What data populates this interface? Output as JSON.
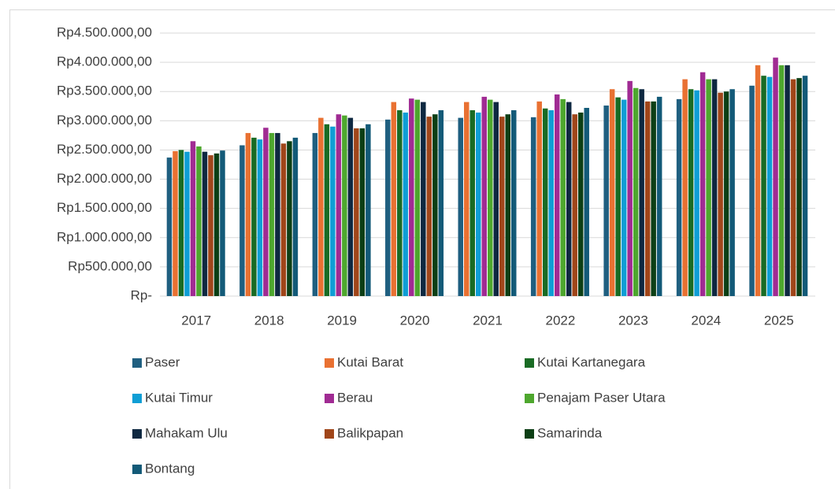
{
  "chart_data": {
    "type": "bar",
    "categories": [
      "2017",
      "2018",
      "2019",
      "2020",
      "2021",
      "2022",
      "2023",
      "2024",
      "2025"
    ],
    "series": [
      {
        "name": "Paser",
        "color": "#1f5f80",
        "values": [
          2370000,
          2580000,
          2790000,
          3020000,
          3050000,
          3060000,
          3260000,
          3370000,
          3600000
        ]
      },
      {
        "name": "Kutai Barat",
        "color": "#e97132",
        "values": [
          2480000,
          2790000,
          3050000,
          3320000,
          3320000,
          3330000,
          3540000,
          3710000,
          3950000
        ]
      },
      {
        "name": "Kutai Kartanegara",
        "color": "#196b24",
        "values": [
          2500000,
          2710000,
          2940000,
          3180000,
          3180000,
          3210000,
          3400000,
          3540000,
          3770000
        ]
      },
      {
        "name": "Kutai Timur",
        "color": "#0f9ed5",
        "values": [
          2470000,
          2680000,
          2900000,
          3140000,
          3140000,
          3180000,
          3360000,
          3520000,
          3750000
        ]
      },
      {
        "name": "Berau",
        "color": "#a02b93",
        "values": [
          2650000,
          2880000,
          3110000,
          3380000,
          3410000,
          3450000,
          3680000,
          3830000,
          4080000
        ]
      },
      {
        "name": "Penajam Paser Utara",
        "color": "#4ea72e",
        "values": [
          2560000,
          2790000,
          3090000,
          3360000,
          3360000,
          3370000,
          3560000,
          3710000,
          3950000
        ]
      },
      {
        "name": "Mahakam Ulu",
        "color": "#0e2841",
        "values": [
          2470000,
          2790000,
          3050000,
          3320000,
          3320000,
          3320000,
          3540000,
          3710000,
          3950000
        ]
      },
      {
        "name": "Balikpapan",
        "color": "#a0461a",
        "values": [
          2410000,
          2610000,
          2870000,
          3070000,
          3070000,
          3110000,
          3330000,
          3480000,
          3710000
        ]
      },
      {
        "name": "Samarinda",
        "color": "#0c3f15",
        "values": [
          2440000,
          2650000,
          2870000,
          3110000,
          3110000,
          3140000,
          3330000,
          3500000,
          3730000
        ]
      },
      {
        "name": "Bontang",
        "color": "#135a78",
        "values": [
          2490000,
          2710000,
          2940000,
          3180000,
          3180000,
          3220000,
          3410000,
          3540000,
          3770000
        ]
      }
    ],
    "ylim": [
      0,
      4500000
    ],
    "yticks": [
      {
        "value": 0,
        "label": "Rp-"
      },
      {
        "value": 500000,
        "label": "Rp500.000,00"
      },
      {
        "value": 1000000,
        "label": "Rp1.000.000,00"
      },
      {
        "value": 1500000,
        "label": "Rp1.500.000,00"
      },
      {
        "value": 2000000,
        "label": "Rp2.000.000,00"
      },
      {
        "value": 2500000,
        "label": "Rp2.500.000,00"
      },
      {
        "value": 3000000,
        "label": "Rp3.000.000,00"
      },
      {
        "value": 3500000,
        "label": "Rp3.500.000,00"
      },
      {
        "value": 4000000,
        "label": "Rp4.000.000,00"
      },
      {
        "value": 4500000,
        "label": "Rp4.500.000,00"
      }
    ],
    "grid": true,
    "legend": "bottom"
  }
}
